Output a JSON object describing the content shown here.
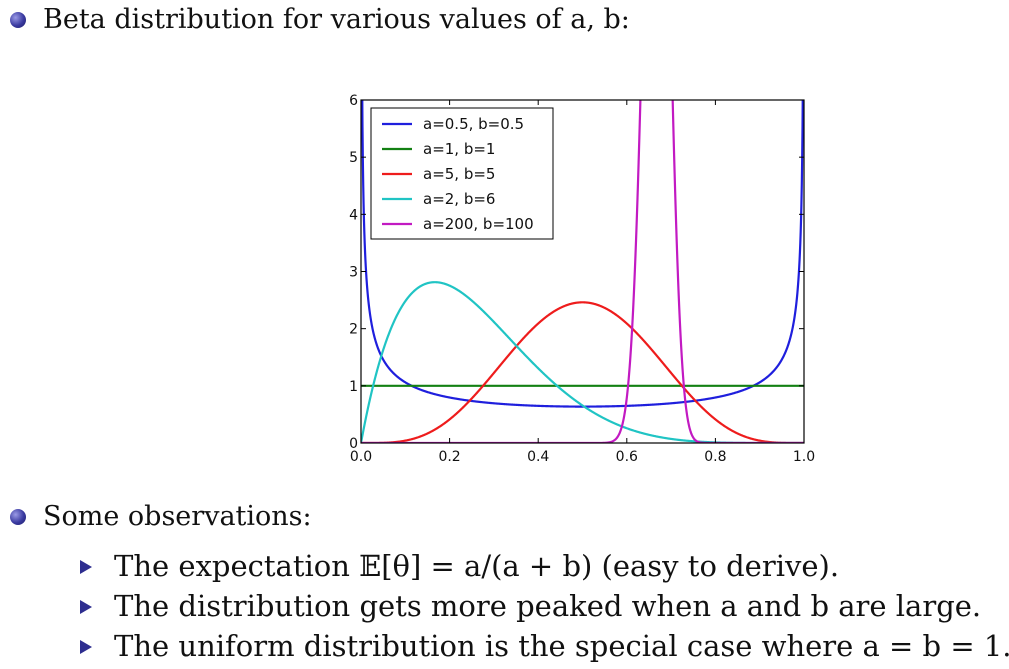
{
  "slide": {
    "bullet1": "Beta distribution for various values of a, b:",
    "bullet2": "Some observations:",
    "sub_bullets": [
      "The expectation 𝔼[θ] = a/(a + b) (easy to derive).",
      "The distribution gets more peaked when a and b are large.",
      "The uniform distribution is the special case where a = b = 1."
    ]
  },
  "colors": {
    "bullet": "#2d2d8f"
  },
  "chart_data": {
    "type": "line",
    "title": "",
    "xlabel": "",
    "ylabel": "",
    "xlim": [
      0.0,
      1.0
    ],
    "ylim": [
      0,
      6
    ],
    "xticks": [
      "0.0",
      "0.2",
      "0.4",
      "0.6",
      "0.8",
      "1.0"
    ],
    "yticks": [
      "0",
      "1",
      "2",
      "3",
      "4",
      "5",
      "6"
    ],
    "grid": false,
    "legend_position": "top-left",
    "series": [
      {
        "name": "a=0.5, b=0.5",
        "a": 0.5,
        "b": 0.5,
        "color": "#1f1fdd"
      },
      {
        "name": "a=1, b=1",
        "a": 1,
        "b": 1,
        "color": "#138013"
      },
      {
        "name": "a=5, b=5",
        "a": 5,
        "b": 5,
        "color": "#ee1c1c"
      },
      {
        "name": "a=2, b=6",
        "a": 2,
        "b": 6,
        "color": "#20c4c4"
      },
      {
        "name": "a=200, b=100",
        "a": 200,
        "b": 100,
        "color": "#c21ac2"
      }
    ]
  }
}
